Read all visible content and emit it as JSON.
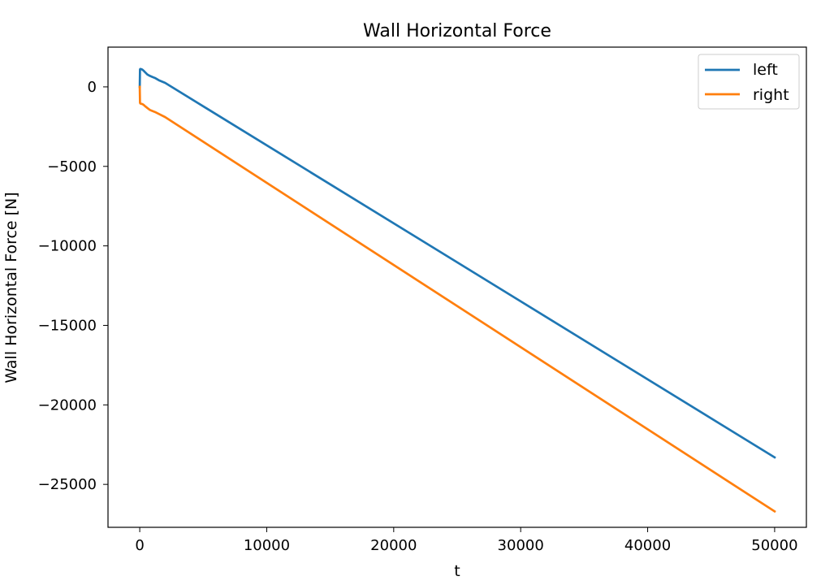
{
  "chart_data": {
    "type": "line",
    "title": "Wall Horizontal Force",
    "xlabel": "t",
    "ylabel": "Wall Horizontal Force [N]",
    "xlim": [
      -2500,
      52500
    ],
    "ylim": [
      -27700,
      2500
    ],
    "xticks": [
      0,
      10000,
      20000,
      30000,
      40000,
      50000
    ],
    "xtick_labels": [
      "0",
      "10000",
      "20000",
      "30000",
      "40000",
      "50000"
    ],
    "yticks": [
      0,
      -5000,
      -10000,
      -15000,
      -20000,
      -25000
    ],
    "ytick_labels": [
      "0",
      "−5000",
      "−10000",
      "−15000",
      "−20000",
      "−25000"
    ],
    "grid": false,
    "legend_position": "top-right",
    "series": [
      {
        "name": "left",
        "color": "#1f77b4",
        "x": [
          0,
          20,
          50,
          100,
          200,
          300,
          400,
          600,
          800,
          1000,
          1200,
          1500,
          2000,
          50000
        ],
        "y": [
          0,
          1100,
          1130,
          1120,
          1090,
          1020,
          940,
          780,
          690,
          620,
          560,
          420,
          250,
          -23300
        ]
      },
      {
        "name": "right",
        "color": "#ff7f0e",
        "x": [
          0,
          20,
          50,
          100,
          200,
          300,
          400,
          600,
          800,
          1000,
          1200,
          1500,
          2000,
          50000
        ],
        "y": [
          0,
          -1000,
          -1050,
          -1060,
          -1080,
          -1130,
          -1200,
          -1330,
          -1450,
          -1520,
          -1580,
          -1700,
          -1900,
          -26700
        ]
      }
    ]
  }
}
